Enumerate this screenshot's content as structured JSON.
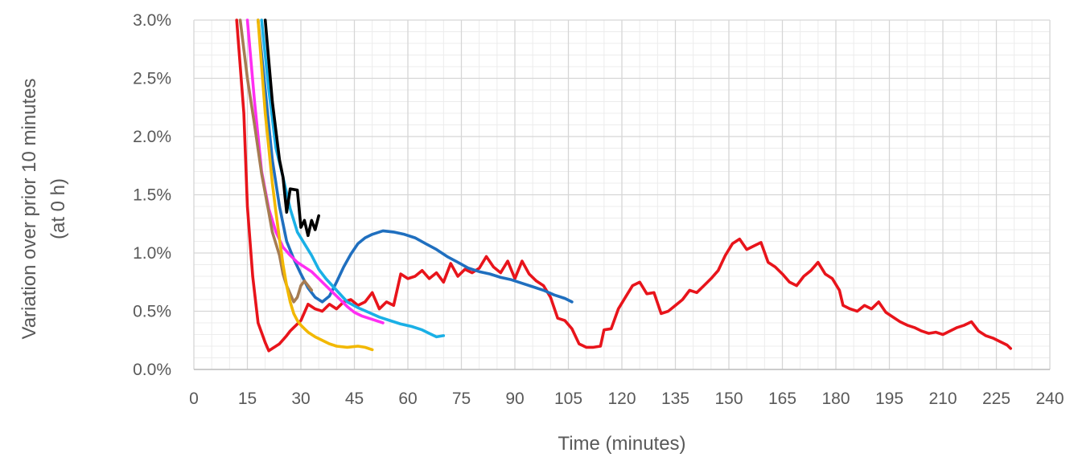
{
  "chart_data": {
    "type": "line",
    "title": "",
    "xlabel": "Time (minutes)",
    "ylabel_lines": [
      "Variation over prior 10 minutes",
      "(at 0 h)"
    ],
    "xlim": [
      0,
      240
    ],
    "ylim": [
      0,
      0.03
    ],
    "x_ticks": [
      0,
      15,
      30,
      45,
      60,
      75,
      90,
      105,
      120,
      135,
      150,
      165,
      180,
      195,
      210,
      225,
      240
    ],
    "x_tick_labels": [
      "0",
      "15",
      "30",
      "45",
      "60",
      "75",
      "90",
      "105",
      "120",
      "135",
      "150",
      "165",
      "180",
      "195",
      "210",
      "225",
      "240"
    ],
    "y_ticks": [
      0,
      0.005,
      0.01,
      0.015,
      0.02,
      0.025,
      0.03
    ],
    "y_tick_labels": [
      "0.0%",
      "0.5%",
      "1.0%",
      "1.5%",
      "2.0%",
      "2.5%",
      "3.0%"
    ],
    "grid": true,
    "legend": "none",
    "series": [
      {
        "color": "#e8141b",
        "points": [
          [
            12,
            0.03
          ],
          [
            14,
            0.022
          ],
          [
            15,
            0.014
          ],
          [
            16.5,
            0.008
          ],
          [
            18,
            0.004
          ],
          [
            20,
            0.0023
          ],
          [
            21,
            0.0016
          ],
          [
            22,
            0.0018
          ],
          [
            24,
            0.0022
          ],
          [
            26,
            0.0029
          ],
          [
            27,
            0.0033
          ],
          [
            28,
            0.0036
          ],
          [
            30,
            0.0042
          ],
          [
            32,
            0.0056
          ],
          [
            34,
            0.0052
          ],
          [
            36,
            0.005
          ],
          [
            38,
            0.0056
          ],
          [
            40,
            0.0052
          ],
          [
            42,
            0.0058
          ],
          [
            44,
            0.006
          ],
          [
            46,
            0.0055
          ],
          [
            48,
            0.0058
          ],
          [
            50,
            0.0066
          ],
          [
            52,
            0.0052
          ],
          [
            54,
            0.0058
          ],
          [
            56,
            0.0055
          ],
          [
            58,
            0.0082
          ],
          [
            60,
            0.0078
          ],
          [
            62,
            0.008
          ],
          [
            64,
            0.0085
          ],
          [
            66,
            0.0078
          ],
          [
            68,
            0.0083
          ],
          [
            70,
            0.0075
          ],
          [
            72,
            0.0091
          ],
          [
            74,
            0.008
          ],
          [
            76,
            0.0086
          ],
          [
            78,
            0.0083
          ],
          [
            80,
            0.0087
          ],
          [
            82,
            0.0097
          ],
          [
            84,
            0.0088
          ],
          [
            86,
            0.0083
          ],
          [
            88,
            0.0093
          ],
          [
            90,
            0.0078
          ],
          [
            92,
            0.0093
          ],
          [
            94,
            0.0082
          ],
          [
            96,
            0.0076
          ],
          [
            98,
            0.0072
          ],
          [
            100,
            0.0062
          ],
          [
            102,
            0.0044
          ],
          [
            104,
            0.0042
          ],
          [
            106,
            0.0035
          ],
          [
            108,
            0.0022
          ],
          [
            110,
            0.0019
          ],
          [
            112,
            0.0019
          ],
          [
            114,
            0.002
          ],
          [
            115,
            0.0034
          ],
          [
            117,
            0.0035
          ],
          [
            119,
            0.0052
          ],
          [
            121,
            0.0062
          ],
          [
            123,
            0.0072
          ],
          [
            125,
            0.0075
          ],
          [
            127,
            0.0065
          ],
          [
            129,
            0.0066
          ],
          [
            131,
            0.0048
          ],
          [
            133,
            0.005
          ],
          [
            135,
            0.0055
          ],
          [
            137,
            0.006
          ],
          [
            139,
            0.0068
          ],
          [
            141,
            0.0066
          ],
          [
            143,
            0.0072
          ],
          [
            145,
            0.0078
          ],
          [
            147,
            0.0085
          ],
          [
            149,
            0.0098
          ],
          [
            151,
            0.0108
          ],
          [
            153,
            0.0112
          ],
          [
            155,
            0.0103
          ],
          [
            157,
            0.0106
          ],
          [
            159,
            0.0109
          ],
          [
            161,
            0.0092
          ],
          [
            163,
            0.0088
          ],
          [
            165,
            0.0082
          ],
          [
            167,
            0.0075
          ],
          [
            169,
            0.0072
          ],
          [
            171,
            0.008
          ],
          [
            173,
            0.0085
          ],
          [
            175,
            0.0092
          ],
          [
            177,
            0.0082
          ],
          [
            179,
            0.0078
          ],
          [
            181,
            0.0068
          ],
          [
            182,
            0.0055
          ],
          [
            184,
            0.0052
          ],
          [
            186,
            0.005
          ],
          [
            188,
            0.0055
          ],
          [
            190,
            0.0052
          ],
          [
            192,
            0.0058
          ],
          [
            194,
            0.0049
          ],
          [
            196,
            0.0045
          ],
          [
            198,
            0.0041
          ],
          [
            200,
            0.0038
          ],
          [
            202,
            0.0036
          ],
          [
            204,
            0.0033
          ],
          [
            206,
            0.0031
          ],
          [
            208,
            0.0032
          ],
          [
            210,
            0.003
          ],
          [
            212,
            0.0033
          ],
          [
            214,
            0.0036
          ],
          [
            216,
            0.0038
          ],
          [
            218,
            0.0041
          ],
          [
            220,
            0.0033
          ],
          [
            222,
            0.0029
          ],
          [
            224,
            0.0027
          ],
          [
            226,
            0.0024
          ],
          [
            228,
            0.0021
          ],
          [
            229,
            0.0018
          ]
        ]
      },
      {
        "color": "#1f6fbf",
        "points": [
          [
            18,
            0.03
          ],
          [
            20,
            0.024
          ],
          [
            22,
            0.018
          ],
          [
            24,
            0.014
          ],
          [
            26,
            0.011
          ],
          [
            28,
            0.0095
          ],
          [
            30,
            0.0082
          ],
          [
            32,
            0.007
          ],
          [
            34,
            0.0062
          ],
          [
            36,
            0.0058
          ],
          [
            38,
            0.0063
          ],
          [
            40,
            0.0075
          ],
          [
            42,
            0.0088
          ],
          [
            44,
            0.0099
          ],
          [
            46,
            0.0108
          ],
          [
            48,
            0.0113
          ],
          [
            50,
            0.0116
          ],
          [
            53,
            0.0119
          ],
          [
            56,
            0.0118
          ],
          [
            59,
            0.0116
          ],
          [
            62,
            0.0113
          ],
          [
            65,
            0.0108
          ],
          [
            68,
            0.0103
          ],
          [
            71,
            0.0097
          ],
          [
            74,
            0.0092
          ],
          [
            77,
            0.0087
          ],
          [
            80,
            0.0084
          ],
          [
            83,
            0.0082
          ],
          [
            86,
            0.0079
          ],
          [
            89,
            0.0077
          ],
          [
            92,
            0.0074
          ],
          [
            95,
            0.0071
          ],
          [
            98,
            0.0068
          ],
          [
            101,
            0.0064
          ],
          [
            104,
            0.0061
          ],
          [
            106,
            0.0058
          ]
        ]
      },
      {
        "color": "#1ab0e6",
        "points": [
          [
            19,
            0.03
          ],
          [
            21,
            0.024
          ],
          [
            23,
            0.019
          ],
          [
            25,
            0.0165
          ],
          [
            27,
            0.0138
          ],
          [
            29,
            0.0118
          ],
          [
            31,
            0.0108
          ],
          [
            33,
            0.0098
          ],
          [
            35,
            0.0086
          ],
          [
            37,
            0.0078
          ],
          [
            40,
            0.0068
          ],
          [
            43,
            0.0058
          ],
          [
            46,
            0.0053
          ],
          [
            49,
            0.0049
          ],
          [
            52,
            0.0045
          ],
          [
            55,
            0.0042
          ],
          [
            58,
            0.0039
          ],
          [
            61,
            0.0037
          ],
          [
            64,
            0.0034
          ],
          [
            66,
            0.0031
          ],
          [
            68,
            0.0028
          ],
          [
            70,
            0.0029
          ]
        ]
      },
      {
        "color": "#000000",
        "points": [
          [
            20,
            0.03
          ],
          [
            22,
            0.023
          ],
          [
            24,
            0.018
          ],
          [
            25,
            0.0165
          ],
          [
            26,
            0.0135
          ],
          [
            27,
            0.0155
          ],
          [
            29,
            0.0154
          ],
          [
            30,
            0.0122
          ],
          [
            31,
            0.0128
          ],
          [
            32,
            0.0115
          ],
          [
            33,
            0.0128
          ],
          [
            34,
            0.012
          ],
          [
            35,
            0.0132
          ]
        ]
      },
      {
        "color": "#ff2ef2",
        "points": [
          [
            15,
            0.03
          ],
          [
            17,
            0.023
          ],
          [
            19,
            0.017
          ],
          [
            21,
            0.0138
          ],
          [
            23,
            0.0118
          ],
          [
            25,
            0.0105
          ],
          [
            27,
            0.0098
          ],
          [
            29,
            0.0092
          ],
          [
            31,
            0.0088
          ],
          [
            33,
            0.0084
          ],
          [
            35,
            0.0078
          ],
          [
            37,
            0.0072
          ],
          [
            39,
            0.0066
          ],
          [
            41,
            0.006
          ],
          [
            43,
            0.0054
          ],
          [
            45,
            0.0049
          ],
          [
            47,
            0.0046
          ],
          [
            49,
            0.0044
          ],
          [
            51,
            0.0042
          ],
          [
            53,
            0.004
          ]
        ]
      },
      {
        "color": "#a67c52",
        "points": [
          [
            13,
            0.03
          ],
          [
            15,
            0.025
          ],
          [
            17,
            0.021
          ],
          [
            19,
            0.0168
          ],
          [
            21,
            0.0135
          ],
          [
            22,
            0.0118
          ],
          [
            24,
            0.0098
          ],
          [
            25,
            0.0082
          ],
          [
            26,
            0.0072
          ],
          [
            27,
            0.0065
          ],
          [
            28,
            0.0058
          ],
          [
            29,
            0.0062
          ],
          [
            30,
            0.0072
          ],
          [
            31,
            0.0076
          ],
          [
            32,
            0.0072
          ],
          [
            33,
            0.0068
          ]
        ]
      },
      {
        "color": "#f2b800",
        "points": [
          [
            18,
            0.03
          ],
          [
            19,
            0.026
          ],
          [
            20,
            0.022
          ],
          [
            21,
            0.019
          ],
          [
            22,
            0.016
          ],
          [
            23,
            0.0135
          ],
          [
            24,
            0.0112
          ],
          [
            25,
            0.009
          ],
          [
            26,
            0.0072
          ],
          [
            27,
            0.0058
          ],
          [
            28,
            0.0048
          ],
          [
            29,
            0.0042
          ],
          [
            30,
            0.0038
          ],
          [
            31,
            0.0035
          ],
          [
            32,
            0.0032
          ],
          [
            34,
            0.0028
          ],
          [
            36,
            0.0025
          ],
          [
            38,
            0.0022
          ],
          [
            40,
            0.002
          ],
          [
            43,
            0.0019
          ],
          [
            46,
            0.002
          ],
          [
            48,
            0.0019
          ],
          [
            50,
            0.0017
          ]
        ]
      }
    ]
  }
}
